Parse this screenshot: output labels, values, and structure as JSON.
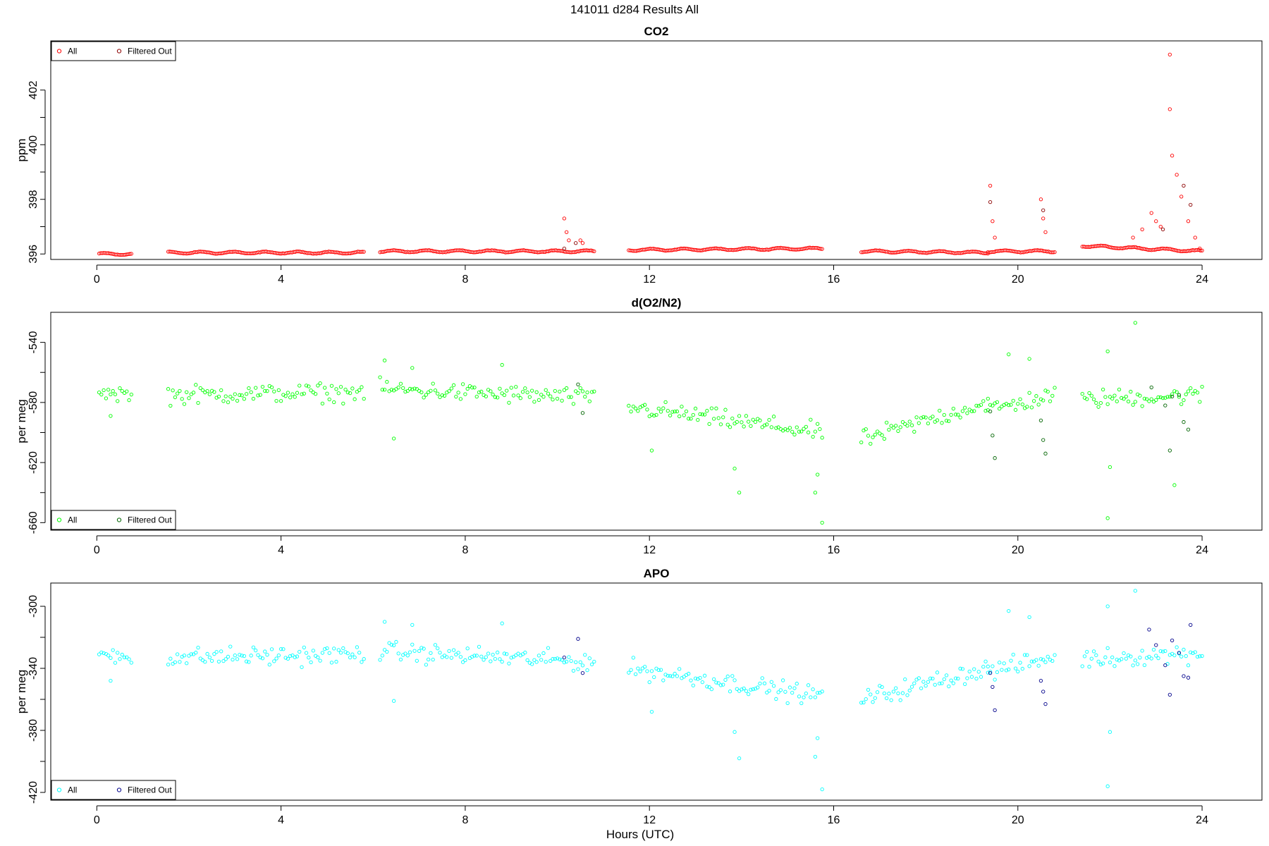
{
  "page_title": "141011   d284   Results All",
  "xlabel": "Hours (UTC)",
  "colors": {
    "co2": "#ff0000",
    "co2_filtered": "#8b0000",
    "o2n2": "#00ff00",
    "o2n2_filtered": "#006400",
    "apo": "#00ffff",
    "apo_filtered": "#00008b"
  },
  "chart_data": [
    {
      "type": "scatter",
      "title": "CO2",
      "xlabel": "Hours (UTC)",
      "ylabel": "ppm",
      "xlim": [
        -1.0,
        25.3
      ],
      "ylim": [
        395.8,
        403.8
      ],
      "xticks": [
        "0",
        "4",
        "8",
        "12",
        "16",
        "20",
        "24"
      ],
      "yticks": [
        "396",
        "398",
        "400",
        "402"
      ],
      "legend": {
        "position": "top-left",
        "entries": [
          "All",
          "Filtered Out"
        ]
      },
      "series": [
        {
          "name": "All",
          "color": "#ff0000",
          "segments": [
            {
              "x": [
                0.05,
                0.75
              ],
              "y": [
                396.0,
                396.0
              ]
            },
            {
              "x": [
                1.55,
                5.8
              ],
              "y": [
                396.05,
                396.05
              ]
            },
            {
              "x": [
                6.15,
                10.8
              ],
              "y": [
                396.1,
                396.1
              ]
            },
            {
              "x": [
                11.55,
                15.75
              ],
              "y": [
                396.15,
                396.2
              ]
            },
            {
              "x": [
                16.6,
                19.35
              ],
              "y": [
                396.1,
                396.05
              ]
            },
            {
              "x": [
                19.35,
                20.8
              ],
              "y": [
                396.1,
                396.1
              ]
            },
            {
              "x": [
                21.4,
                24.0
              ],
              "y": [
                396.3,
                396.1
              ]
            }
          ],
          "points": [
            {
              "x": 10.15,
              "y": 397.3
            },
            {
              "x": 10.2,
              "y": 396.8
            },
            {
              "x": 10.25,
              "y": 396.5
            },
            {
              "x": 10.5,
              "y": 396.5
            },
            {
              "x": 10.55,
              "y": 396.4
            },
            {
              "x": 19.4,
              "y": 398.5
            },
            {
              "x": 19.45,
              "y": 397.2
            },
            {
              "x": 19.5,
              "y": 396.6
            },
            {
              "x": 20.5,
              "y": 398.0
            },
            {
              "x": 20.55,
              "y": 397.3
            },
            {
              "x": 20.6,
              "y": 396.8
            },
            {
              "x": 22.5,
              "y": 396.6
            },
            {
              "x": 22.7,
              "y": 396.9
            },
            {
              "x": 22.9,
              "y": 397.5
            },
            {
              "x": 23.0,
              "y": 397.2
            },
            {
              "x": 23.1,
              "y": 397.0
            },
            {
              "x": 23.3,
              "y": 403.3
            },
            {
              "x": 23.3,
              "y": 401.3
            },
            {
              "x": 23.35,
              "y": 399.6
            },
            {
              "x": 23.45,
              "y": 398.9
            },
            {
              "x": 23.55,
              "y": 398.1
            },
            {
              "x": 23.7,
              "y": 397.2
            },
            {
              "x": 23.85,
              "y": 396.6
            },
            {
              "x": 23.95,
              "y": 396.2
            }
          ]
        },
        {
          "name": "Filtered Out",
          "color": "#8b0000",
          "points": [
            {
              "x": 10.15,
              "y": 396.2
            },
            {
              "x": 10.4,
              "y": 396.4
            },
            {
              "x": 19.4,
              "y": 397.9
            },
            {
              "x": 20.55,
              "y": 397.6
            },
            {
              "x": 23.15,
              "y": 396.9
            },
            {
              "x": 23.6,
              "y": 398.5
            },
            {
              "x": 23.75,
              "y": 397.8
            }
          ]
        }
      ]
    },
    {
      "type": "scatter",
      "title": "d(O2/N2)",
      "xlabel": "Hours (UTC)",
      "ylabel": "per meg",
      "xlim": [
        -1.0,
        25.3
      ],
      "ylim": [
        -665,
        -520
      ],
      "xticks": [
        "0",
        "4",
        "8",
        "12",
        "16",
        "20",
        "24"
      ],
      "yticks": [
        "-540",
        "-580",
        "-620",
        "-660"
      ],
      "legend": {
        "position": "bottom-left",
        "entries": [
          "All",
          "Filtered Out"
        ]
      },
      "series": [
        {
          "name": "All",
          "color": "#00ff00",
          "segments": [
            {
              "x": [
                0.05,
                0.75
              ],
              "y": [
                -572,
                -575
              ]
            },
            {
              "x": [
                1.55,
                5.8
              ],
              "y": [
                -575,
                -573
              ]
            },
            {
              "x": [
                6.15,
                10.8
              ],
              "y": [
                -571,
                -577
              ]
            },
            {
              "x": [
                11.55,
                15.75
              ],
              "y": [
                -583,
                -600
              ]
            },
            {
              "x": [
                16.6,
                19.35
              ],
              "y": [
                -605,
                -580
              ]
            },
            {
              "x": [
                19.35,
                20.8
              ],
              "y": [
                -585,
                -575
              ]
            },
            {
              "x": [
                21.4,
                24.0
              ],
              "y": [
                -578,
                -575
              ]
            }
          ],
          "spread": 9,
          "points": [
            {
              "x": 0.3,
              "y": -589
            },
            {
              "x": 6.25,
              "y": -552
            },
            {
              "x": 6.85,
              "y": -557
            },
            {
              "x": 6.45,
              "y": -604
            },
            {
              "x": 8.8,
              "y": -555
            },
            {
              "x": 12.05,
              "y": -612
            },
            {
              "x": 13.95,
              "y": -640
            },
            {
              "x": 13.85,
              "y": -624
            },
            {
              "x": 15.6,
              "y": -640
            },
            {
              "x": 15.75,
              "y": -660
            },
            {
              "x": 15.65,
              "y": -628
            },
            {
              "x": 19.8,
              "y": -548
            },
            {
              "x": 20.25,
              "y": -551
            },
            {
              "x": 21.95,
              "y": -546
            },
            {
              "x": 22.55,
              "y": -527
            },
            {
              "x": 22.0,
              "y": -623
            },
            {
              "x": 21.95,
              "y": -657
            },
            {
              "x": 23.4,
              "y": -635
            }
          ]
        },
        {
          "name": "Filtered Out",
          "color": "#006400",
          "points": [
            {
              "x": 10.45,
              "y": -568
            },
            {
              "x": 10.55,
              "y": -587
            },
            {
              "x": 19.4,
              "y": -586
            },
            {
              "x": 19.45,
              "y": -602
            },
            {
              "x": 19.5,
              "y": -617
            },
            {
              "x": 20.5,
              "y": -592
            },
            {
              "x": 20.55,
              "y": -605
            },
            {
              "x": 20.6,
              "y": -614
            },
            {
              "x": 22.9,
              "y": -570
            },
            {
              "x": 23.2,
              "y": -582
            },
            {
              "x": 23.35,
              "y": -576
            },
            {
              "x": 23.5,
              "y": -575
            },
            {
              "x": 23.6,
              "y": -593
            },
            {
              "x": 23.3,
              "y": -612
            },
            {
              "x": 23.7,
              "y": -598
            }
          ]
        }
      ]
    },
    {
      "type": "scatter",
      "title": "APO",
      "xlabel": "Hours (UTC)",
      "ylabel": "per meg",
      "xlim": [
        -1.0,
        25.3
      ],
      "ylim": [
        -425,
        -285
      ],
      "xticks": [
        "0",
        "4",
        "8",
        "12",
        "16",
        "20",
        "24"
      ],
      "yticks": [
        "-300",
        "-340",
        "-380",
        "-420"
      ],
      "legend": {
        "position": "bottom-left",
        "entries": [
          "All",
          "Filtered Out"
        ]
      },
      "series": [
        {
          "name": "All",
          "color": "#00ffff",
          "segments": [
            {
              "x": [
                0.05,
                0.75
              ],
              "y": [
                -330,
                -333
              ]
            },
            {
              "x": [
                1.55,
                5.8
              ],
              "y": [
                -333,
                -331
              ]
            },
            {
              "x": [
                6.15,
                10.8
              ],
              "y": [
                -329,
                -336
              ]
            },
            {
              "x": [
                11.55,
                15.75
              ],
              "y": [
                -340,
                -358
              ]
            },
            {
              "x": [
                16.6,
                19.35
              ],
              "y": [
                -360,
                -340
              ]
            },
            {
              "x": [
                19.35,
                20.8
              ],
              "y": [
                -342,
                -333
              ]
            },
            {
              "x": [
                21.4,
                24.0
              ],
              "y": [
                -334,
                -330
              ]
            }
          ],
          "spread": 9,
          "points": [
            {
              "x": 0.3,
              "y": -348
            },
            {
              "x": 6.25,
              "y": -310
            },
            {
              "x": 6.85,
              "y": -312
            },
            {
              "x": 6.45,
              "y": -361
            },
            {
              "x": 8.8,
              "y": -311
            },
            {
              "x": 12.05,
              "y": -368
            },
            {
              "x": 13.95,
              "y": -398
            },
            {
              "x": 13.85,
              "y": -381
            },
            {
              "x": 15.6,
              "y": -397
            },
            {
              "x": 15.75,
              "y": -418
            },
            {
              "x": 15.65,
              "y": -385
            },
            {
              "x": 19.8,
              "y": -303
            },
            {
              "x": 20.25,
              "y": -307
            },
            {
              "x": 21.95,
              "y": -300
            },
            {
              "x": 22.55,
              "y": -290
            },
            {
              "x": 22.0,
              "y": -381
            },
            {
              "x": 21.95,
              "y": -416
            }
          ]
        },
        {
          "name": "Filtered Out",
          "color": "#00008b",
          "points": [
            {
              "x": 10.15,
              "y": -333
            },
            {
              "x": 10.45,
              "y": -321
            },
            {
              "x": 10.55,
              "y": -343
            },
            {
              "x": 19.4,
              "y": -343
            },
            {
              "x": 19.45,
              "y": -352
            },
            {
              "x": 19.5,
              "y": -367
            },
            {
              "x": 20.5,
              "y": -348
            },
            {
              "x": 20.55,
              "y": -355
            },
            {
              "x": 20.6,
              "y": -363
            },
            {
              "x": 22.85,
              "y": -315
            },
            {
              "x": 23.0,
              "y": -325
            },
            {
              "x": 23.2,
              "y": -338
            },
            {
              "x": 23.35,
              "y": -322
            },
            {
              "x": 23.5,
              "y": -330
            },
            {
              "x": 23.6,
              "y": -345
            },
            {
              "x": 23.3,
              "y": -357
            },
            {
              "x": 23.75,
              "y": -312
            },
            {
              "x": 23.7,
              "y": -346
            }
          ]
        }
      ]
    }
  ]
}
